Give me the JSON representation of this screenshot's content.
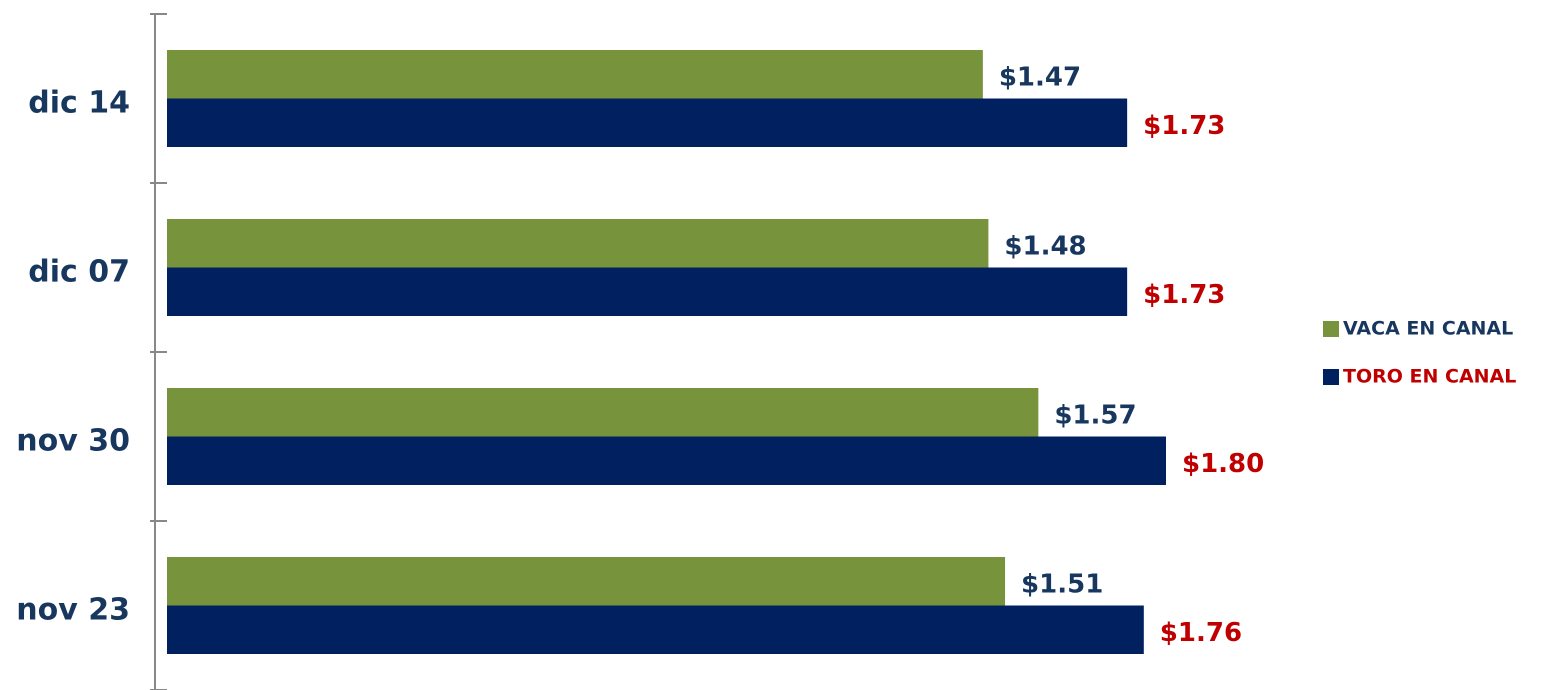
{
  "chart_data": {
    "type": "hbar",
    "categories": [
      "dic 14",
      "dic 07",
      "nov 30",
      "nov 23"
    ],
    "series": [
      {
        "name": "VACA EN CANAL",
        "color": "#77933c",
        "label_color": "#17375e",
        "values": [
          1.47,
          1.48,
          1.57,
          1.51
        ],
        "value_labels": [
          "$1.47",
          "$1.48",
          "$1.57",
          "$1.51"
        ]
      },
      {
        "name": "TORO EN CANAL",
        "color": "#002060",
        "label_color": "#c00000",
        "values": [
          1.73,
          1.73,
          1.8,
          1.76
        ],
        "value_labels": [
          "$1.73",
          "$1.73",
          "$1.80",
          "$1.76"
        ]
      }
    ],
    "xlim": [
      0,
      2
    ],
    "legend": "right"
  }
}
